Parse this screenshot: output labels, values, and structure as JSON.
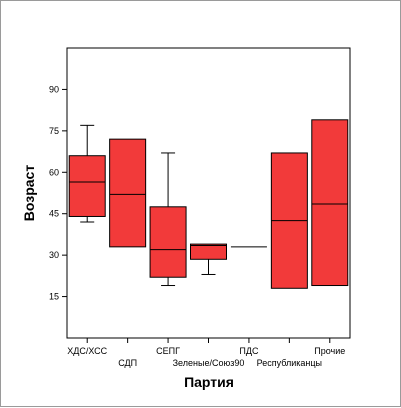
{
  "chart_data": {
    "type": "boxplot",
    "xlabel": "Партия",
    "ylabel": "Возраст",
    "ylim": [
      0,
      105
    ],
    "yticks": [
      15,
      30,
      45,
      60,
      75,
      90
    ],
    "grid": false,
    "colors": {
      "box_fill": "#f23a3a",
      "box_stroke": "#000000"
    },
    "categories": [
      "ХДС/ХСС",
      "СДП",
      "СЕПГ",
      "Зеленые/Союз90",
      "ПДС",
      "Республиканцы",
      "Прочие"
    ],
    "boxes": [
      {
        "category": "ХДС/ХСС",
        "whisker_low": 42,
        "q1": 44,
        "median": 56.5,
        "q3": 66,
        "whisker_high": 77
      },
      {
        "category": "СДП",
        "whisker_low": 33,
        "q1": 33,
        "median": 52,
        "q3": 72,
        "whisker_high": 72
      },
      {
        "category": "СЕПГ",
        "whisker_low": 19,
        "q1": 22,
        "median": 32,
        "q3": 47.5,
        "whisker_high": 67
      },
      {
        "category": "Зеленые/Союз90",
        "whisker_low": 23,
        "q1": 28.5,
        "median": 33.5,
        "q3": 34,
        "whisker_high": 34
      },
      {
        "category": "ПДС",
        "whisker_low": 33,
        "q1": 33,
        "median": 33,
        "q3": 33,
        "whisker_high": 33
      },
      {
        "category": "Республиканцы",
        "whisker_low": 18,
        "q1": 18,
        "median": 42.5,
        "q3": 67,
        "whisker_high": 67
      },
      {
        "category": "Прочие",
        "whisker_low": 19,
        "q1": 19,
        "median": 48.5,
        "q3": 79,
        "whisker_high": 79
      }
    ]
  }
}
